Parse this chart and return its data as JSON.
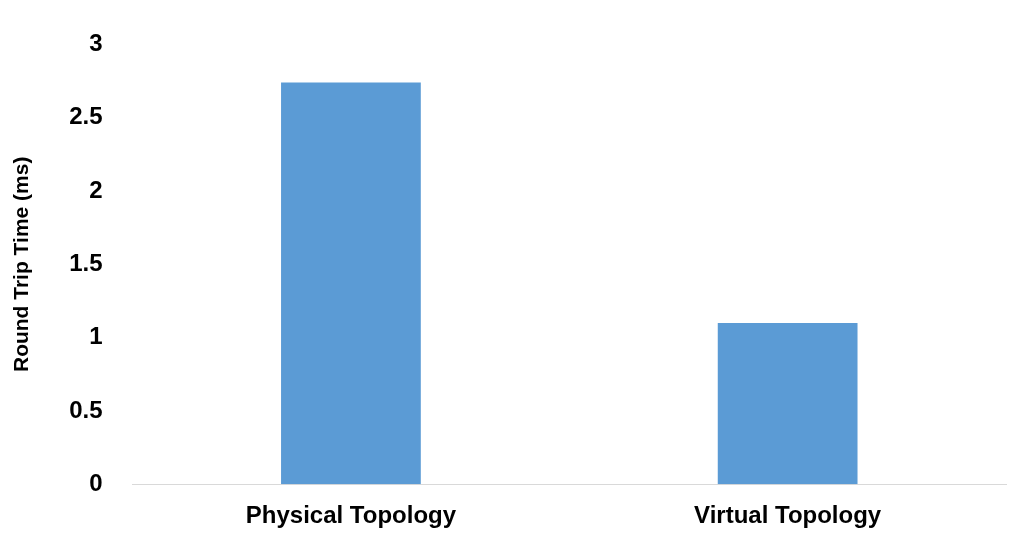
{
  "chart_data": {
    "type": "bar",
    "ylabel": "Round Trip Time (ms)",
    "categories": [
      "Physical Topology",
      "Virtual Topology"
    ],
    "values": [
      2.74,
      1.1
    ],
    "color": "#5b9bd5",
    "ylim": [
      0,
      3
    ],
    "yticks": [
      0,
      0.5,
      1,
      1.5,
      2,
      2.5,
      3
    ],
    "grid": false,
    "legend": false
  }
}
